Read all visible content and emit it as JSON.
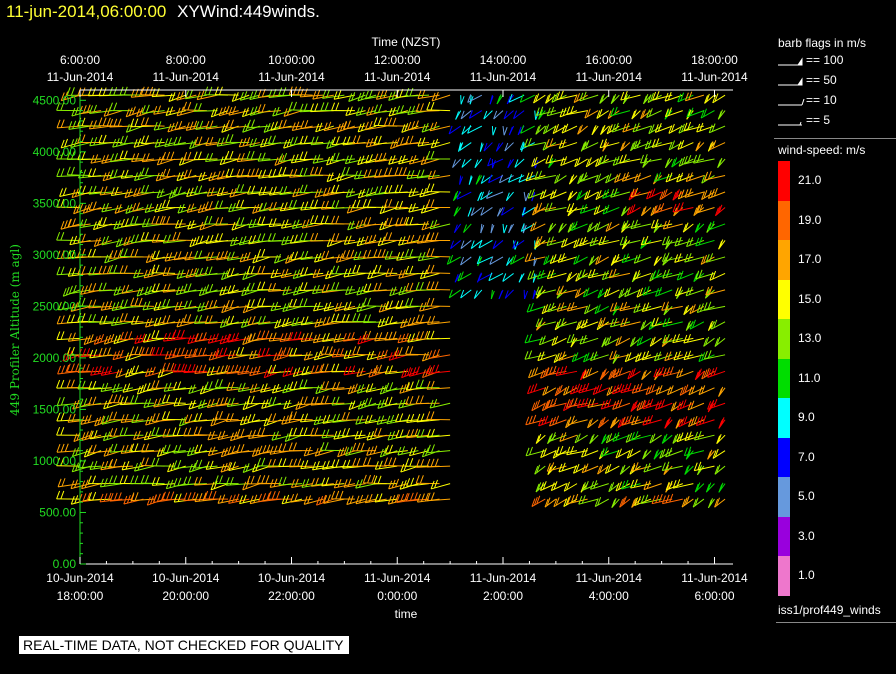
{
  "header": {
    "date": "11-jun-2014,06:00:00",
    "title": "XYWind:449winds."
  },
  "warning": "REAL-TIME DATA, NOT CHECKED FOR QUALITY",
  "source": "iss1/prof449_winds",
  "legend": {
    "barb_title": "barb flags in m/s",
    "barb_flags": [
      {
        "label": "== 100",
        "value": 100
      },
      {
        "label": "== 50",
        "value": 50
      },
      {
        "label": "== 10",
        "value": 10
      },
      {
        "label": "== 5",
        "value": 5
      }
    ],
    "speed_title": "wind-speed: m/s",
    "speed_bins": [
      {
        "label": "21.0",
        "color": "#ff0000"
      },
      {
        "label": "19.0",
        "color": "#ff6600"
      },
      {
        "label": "17.0",
        "color": "#ffa500"
      },
      {
        "label": "15.0",
        "color": "#ffff00"
      },
      {
        "label": "13.0",
        "color": "#88ee00"
      },
      {
        "label": "11.0",
        "color": "#00dd00"
      },
      {
        "label": "9.0",
        "color": "#00ffff"
      },
      {
        "label": "7.0",
        "color": "#0000ff"
      },
      {
        "label": "5.0",
        "color": "#6699dd"
      },
      {
        "label": "3.0",
        "color": "#9900dd"
      },
      {
        "label": "1.0",
        "color": "#ee77cc"
      }
    ]
  },
  "chart_data": {
    "type": "wind-barb time-height plot",
    "top_axis_label": "Time (NZST)",
    "top_ticks": [
      {
        "time": "6:00:00",
        "date": "11-Jun-2014"
      },
      {
        "time": "8:00:00",
        "date": "11-Jun-2014"
      },
      {
        "time": "10:00:00",
        "date": "11-Jun-2014"
      },
      {
        "time": "12:00:00",
        "date": "11-Jun-2014"
      },
      {
        "time": "14:00:00",
        "date": "11-Jun-2014"
      },
      {
        "time": "16:00:00",
        "date": "11-Jun-2014"
      },
      {
        "time": "18:00:00",
        "date": "11-Jun-2014"
      }
    ],
    "xlabel": "time",
    "bottom_ticks": [
      {
        "date": "10-Jun-2014",
        "time": "18:00:00"
      },
      {
        "date": "10-Jun-2014",
        "time": "20:00:00"
      },
      {
        "date": "10-Jun-2014",
        "time": "22:00:00"
      },
      {
        "date": "11-Jun-2014",
        "time": "0:00:00"
      },
      {
        "date": "11-Jun-2014",
        "time": "2:00:00"
      },
      {
        "date": "11-Jun-2014",
        "time": "4:00:00"
      },
      {
        "date": "11-Jun-2014",
        "time": "6:00:00"
      }
    ],
    "x_range_hours": [
      0,
      12.35
    ],
    "ylabel": "449 Profiler Altitude (m agl)",
    "yticks": [
      "0.00",
      "500.00",
      "1000.00",
      "1500.00",
      "2000.00",
      "2500.00",
      "3000.00",
      "3500.00",
      "4000.00",
      "4500.00"
    ],
    "ylim": [
      0,
      4600
    ],
    "altitude_levels_m": [
      630,
      780,
      950,
      1100,
      1250,
      1400,
      1560,
      1710,
      1870,
      2030,
      2190,
      2350,
      2500,
      2660,
      2820,
      2980,
      3140,
      3300,
      3460,
      3610,
      3770,
      3930,
      4090,
      4250,
      4400,
      4550
    ],
    "time_step_min": 12,
    "wind_regimes": [
      {
        "t_start_h": 0,
        "t_end_h": 7.1,
        "alt_min": 600,
        "alt_max": 4600,
        "speed_ms": 15,
        "dir_deg": 250,
        "note": "westerly flow, orange/yellow near 1900-2200 m"
      },
      {
        "t_start_h": 7.1,
        "t_end_h": 8.8,
        "alt_min": 2600,
        "alt_max": 4600,
        "speed_ms": 8,
        "dir_deg": 200,
        "note": "weak blue/cyan region"
      },
      {
        "t_start_h": 8.8,
        "t_end_h": 12.35,
        "alt_min": 600,
        "alt_max": 4600,
        "speed_ms": 14,
        "dir_deg": 220,
        "note": "strong orange/red flow 1400-1900 m and near 3500 m"
      }
    ]
  }
}
